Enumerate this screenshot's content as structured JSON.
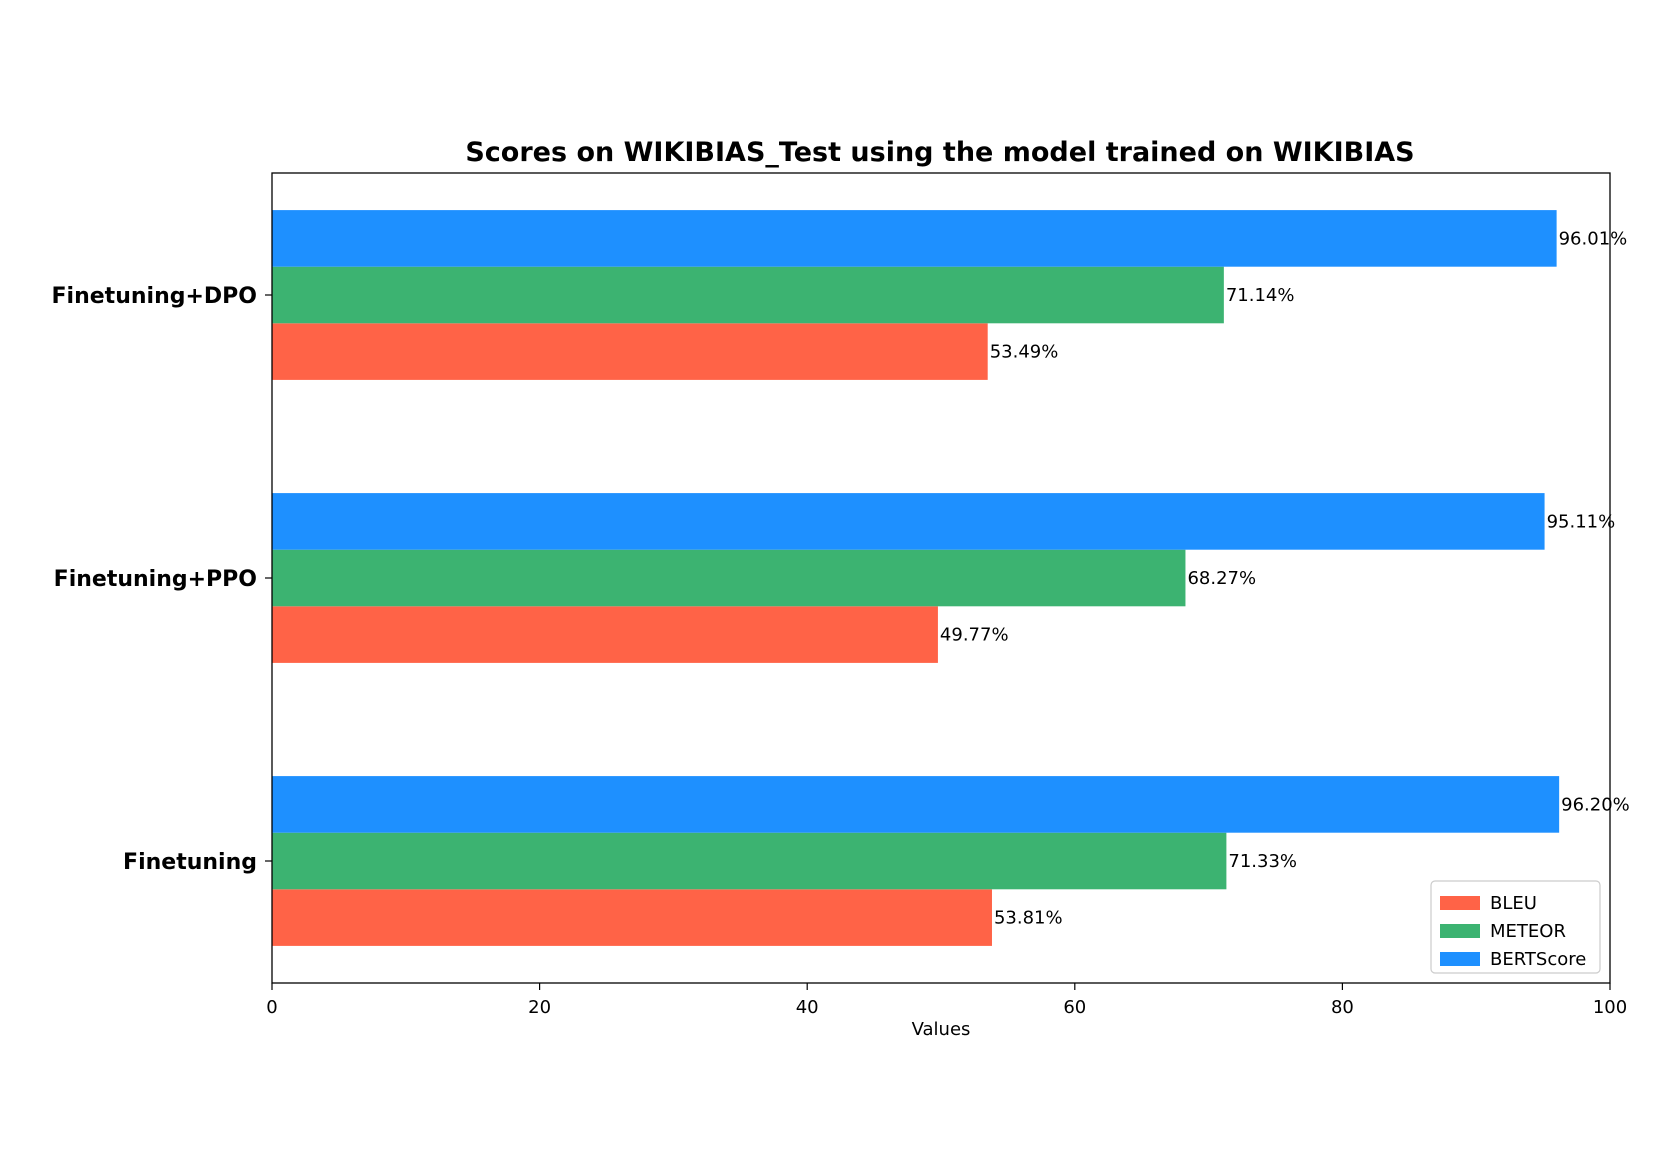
{
  "chart_data": {
    "type": "bar",
    "orientation": "horizontal",
    "title": "Scores on WIKIBIAS_Test using the model trained on WIKIBIAS",
    "xlabel": "Values",
    "ylabel": "",
    "xlim": [
      0,
      100
    ],
    "xticks": [
      "0",
      "20",
      "40",
      "60",
      "80",
      "100"
    ],
    "categories": [
      "Finetuning",
      "Finetuning+PPO",
      "Finetuning+DPO"
    ],
    "series": [
      {
        "name": "BLEU",
        "color": "#FF6347",
        "values": [
          53.81,
          49.77,
          53.49
        ],
        "labels": [
          "53.81%",
          "49.77%",
          "53.49%"
        ]
      },
      {
        "name": "METEOR",
        "color": "#3CB371",
        "values": [
          71.33,
          68.27,
          71.14
        ],
        "labels": [
          "71.33%",
          "68.27%",
          "71.14%"
        ]
      },
      {
        "name": "BERTScore",
        "color": "#1E90FF",
        "values": [
          96.2,
          95.11,
          96.01
        ],
        "labels": [
          "96.20%",
          "95.11%",
          "96.01%"
        ]
      }
    ],
    "legend_position": "lower-right",
    "grid": false
  }
}
